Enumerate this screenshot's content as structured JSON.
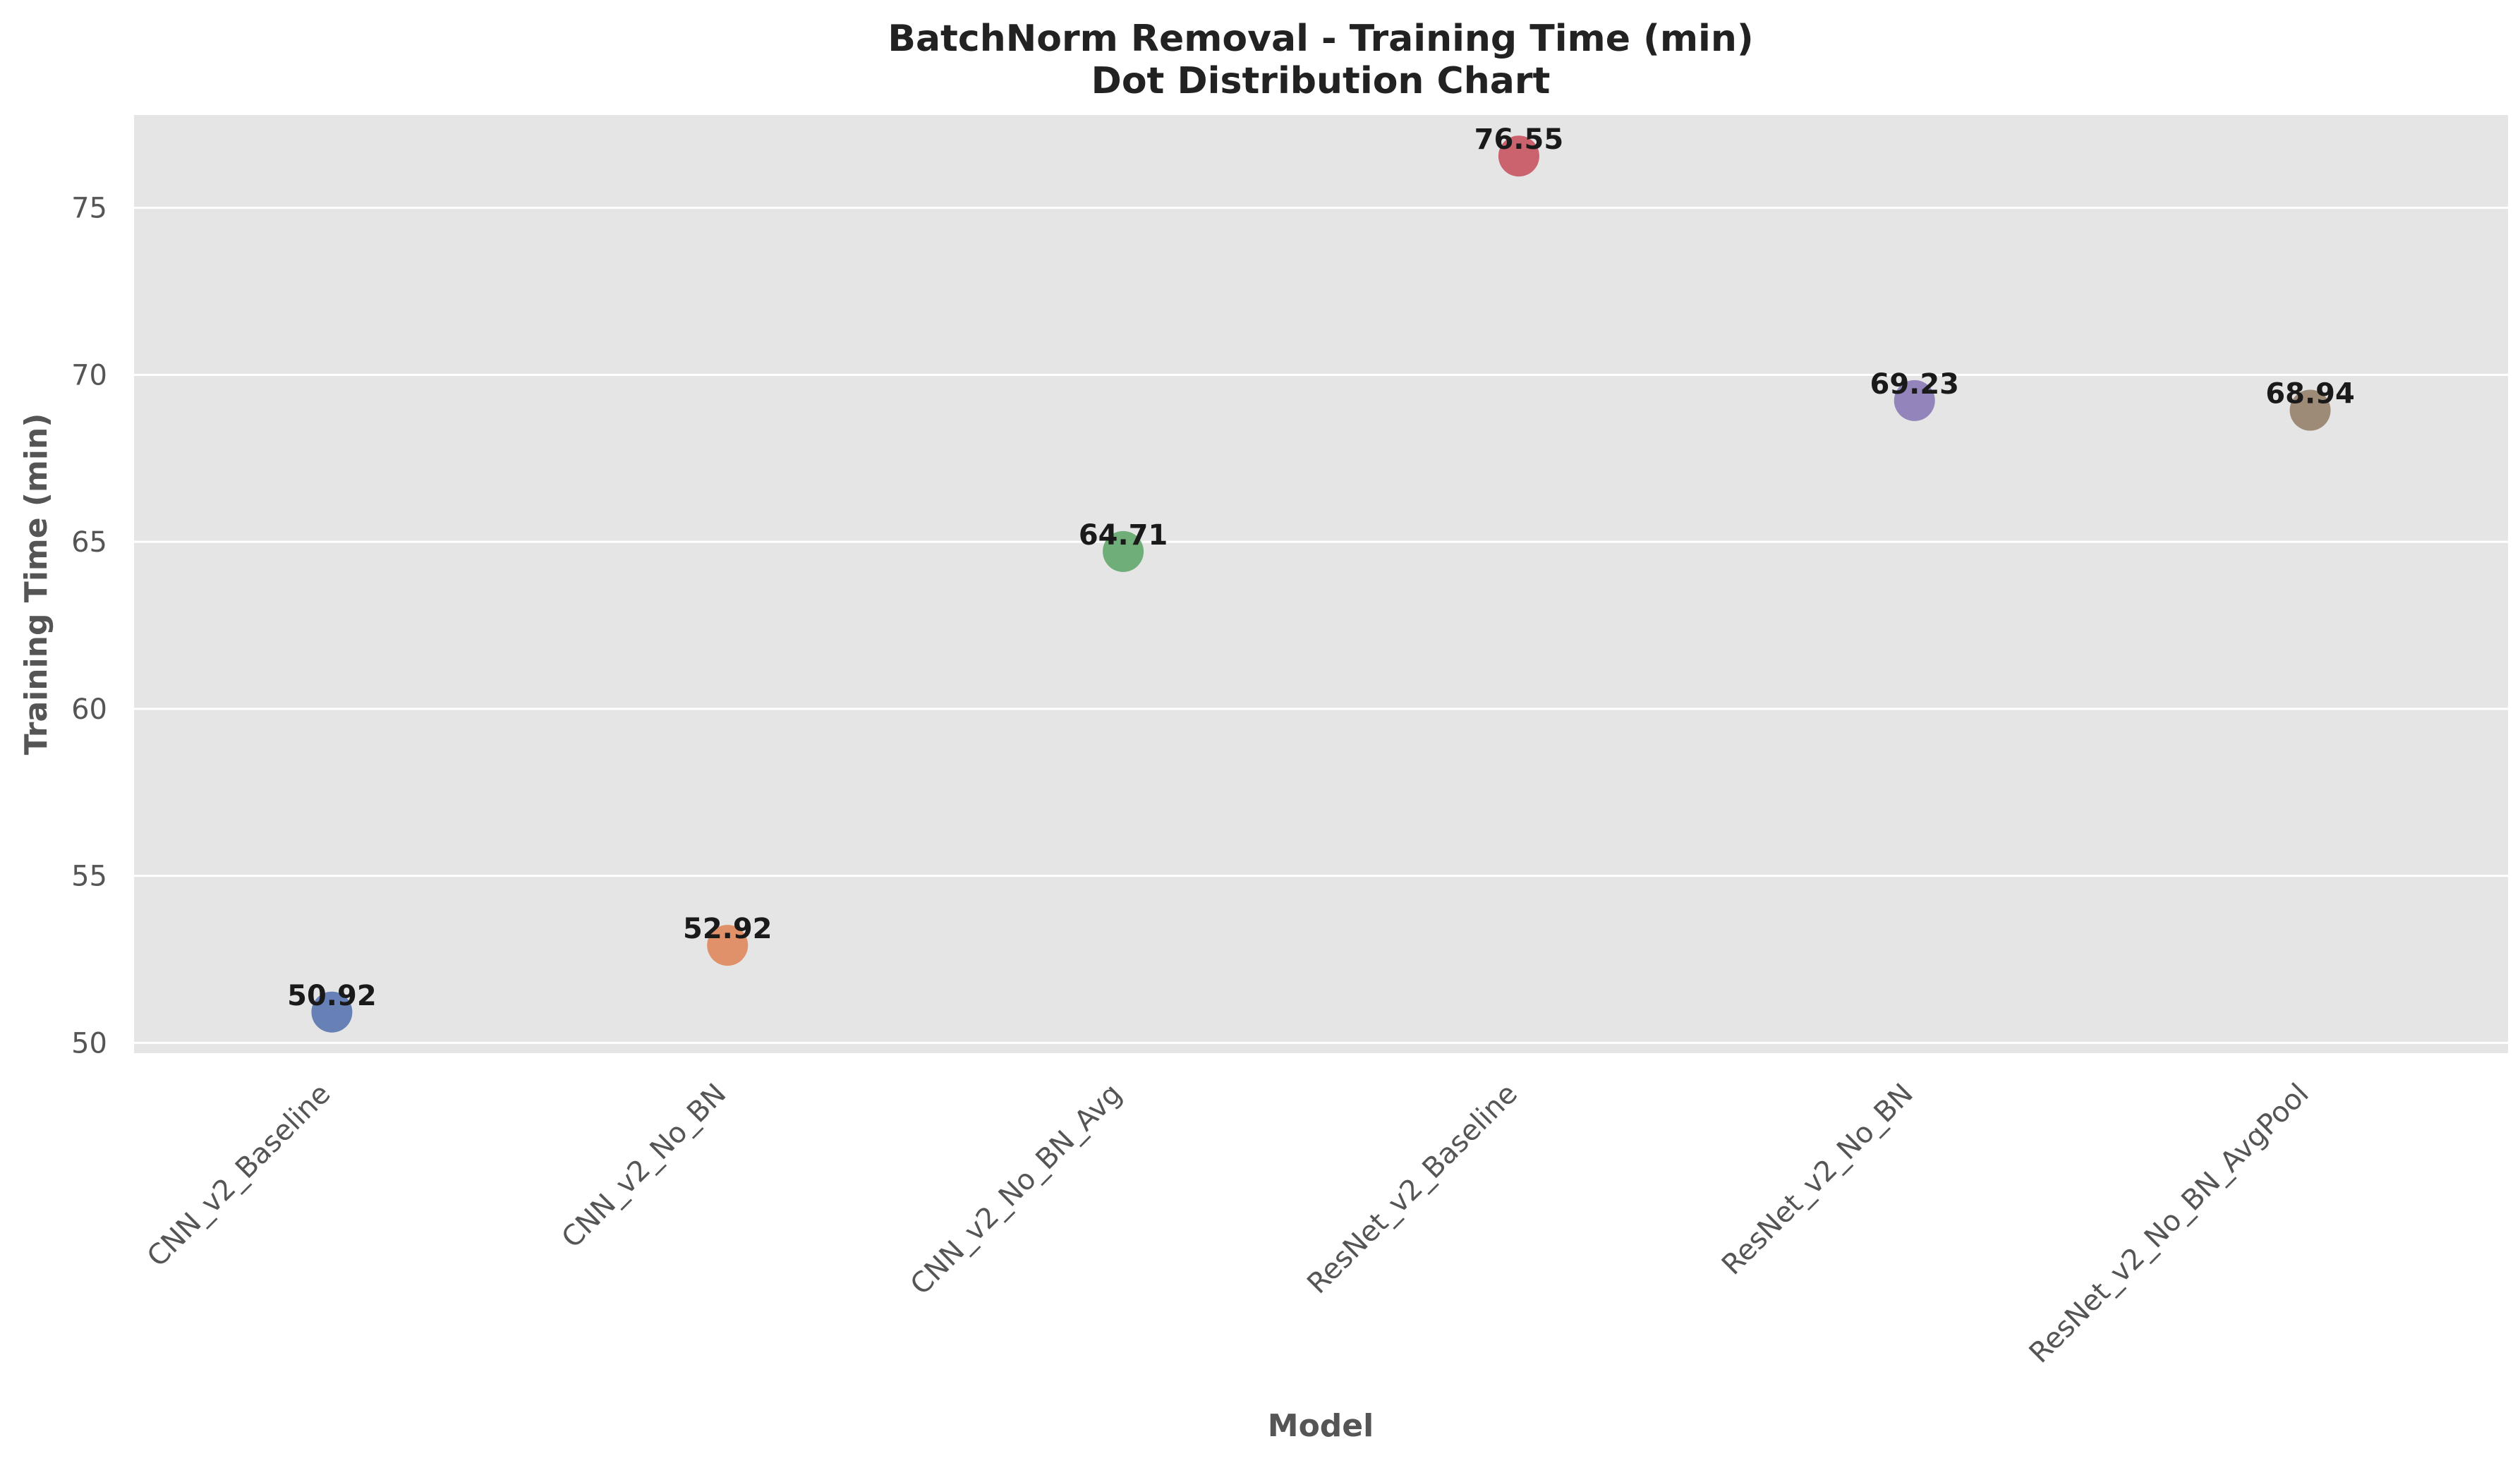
{
  "chart_data": {
    "type": "scatter",
    "title": "BatchNorm Removal - Training Time (min)",
    "subtitle": "Dot Distribution Chart",
    "xlabel": "Model",
    "ylabel": "Training Time (min)",
    "categories": [
      "CNN_v2_Baseline",
      "CNN_v2_No_BN",
      "CNN_v2_No_BN_Avg",
      "ResNet_v2_Baseline",
      "ResNet_v2_No_BN",
      "ResNet_v2_No_BN_AvgPool"
    ],
    "values": [
      50.92,
      52.92,
      64.71,
      76.55,
      69.23,
      68.94
    ],
    "data_labels": [
      "50.92",
      "52.92",
      "64.71",
      "76.55",
      "69.23",
      "68.94"
    ],
    "colors": [
      "#5975b0",
      "#e0875b",
      "#62a76c",
      "#c75460",
      "#8a7ab6",
      "#95806a"
    ],
    "yticks": [
      50,
      55,
      60,
      65,
      70,
      75
    ],
    "ylim": [
      49.69,
      77.78
    ],
    "grid": true,
    "background": "#e5e5e5",
    "legend": "none"
  }
}
